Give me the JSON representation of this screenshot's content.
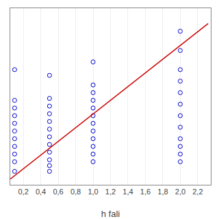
{
  "chart_data": {
    "type": "scatter",
    "xlabel": "h fali",
    "series": [
      {
        "type": "scatter",
        "color": "#0000cc",
        "marker": "circle-open",
        "x": [
          0.1,
          0.1,
          0.1,
          0.1,
          0.1,
          0.1,
          0.1,
          0.1,
          0.1,
          0.1,
          0.5,
          0.5,
          0.5,
          0.5,
          0.5,
          0.5,
          0.5,
          0.5,
          0.5,
          0.5,
          0.5,
          1.0,
          1.0,
          1.0,
          1.0,
          1.0,
          1.0,
          1.0,
          1.0,
          1.0,
          1.0,
          1.0,
          2.0,
          2.0,
          2.0,
          2.0,
          2.0,
          2.0,
          2.0,
          2.0,
          2.0,
          2.0,
          0.1,
          0.5,
          1.0,
          2.0,
          2.0
        ],
        "values": [
          0.05,
          0.1,
          0.14,
          0.18,
          0.22,
          0.26,
          0.3,
          0.34,
          0.38,
          0.42,
          0.05,
          0.08,
          0.11,
          0.15,
          0.19,
          0.23,
          0.27,
          0.31,
          0.35,
          0.39,
          0.43,
          0.1,
          0.14,
          0.18,
          0.22,
          0.26,
          0.3,
          0.34,
          0.38,
          0.42,
          0.46,
          0.5,
          0.1,
          0.14,
          0.18,
          0.22,
          0.28,
          0.34,
          0.4,
          0.46,
          0.52,
          0.58,
          0.58,
          0.55,
          0.62,
          0.68,
          0.78
        ]
      },
      {
        "type": "line",
        "color": "#cc0000",
        "x": [
          0.05,
          2.32
        ],
        "values": [
          0.01,
          0.82
        ]
      }
    ],
    "xlim": [
      0.05,
      2.35
    ],
    "ylim": [
      -0.02,
      0.9
    ],
    "xticks": [
      {
        "value": 0.2,
        "label": "0,2"
      },
      {
        "value": 0.4,
        "label": "0,4"
      },
      {
        "value": 0.6,
        "label": "0,6"
      },
      {
        "value": 0.8,
        "label": "0,8"
      },
      {
        "value": 1.0,
        "label": "1,0"
      },
      {
        "value": 1.2,
        "label": "1,2"
      },
      {
        "value": 1.4,
        "label": "1,4"
      },
      {
        "value": 1.6,
        "label": "1,6"
      },
      {
        "value": 1.8,
        "label": "1,8"
      },
      {
        "value": 2.0,
        "label": "2,0"
      },
      {
        "value": 2.2,
        "label": "2,2"
      }
    ],
    "yticks": [],
    "tick_labels": "x",
    "grid": true
  }
}
